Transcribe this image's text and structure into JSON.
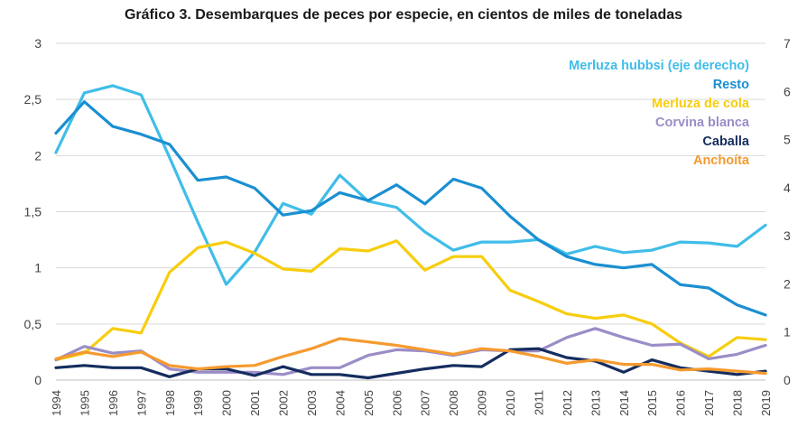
{
  "chart_data": {
    "type": "line",
    "title": "Gráfico 3. Desembarques de peces por especie, en cientos de miles de toneladas",
    "x": [
      "1994",
      "1995",
      "1996",
      "1997",
      "1998",
      "1999",
      "2000",
      "2001",
      "2002",
      "2003",
      "2004",
      "2005",
      "2006",
      "2007",
      "2008",
      "2009",
      "2010",
      "2011",
      "2012",
      "2013",
      "2014",
      "2015",
      "2016",
      "2017",
      "2018",
      "2019"
    ],
    "ylim_left": [
      0,
      3
    ],
    "yticks_left": [
      "0",
      "0,5",
      "1",
      "1,5",
      "2",
      "2,5",
      "3"
    ],
    "ylim_right": [
      0,
      7
    ],
    "yticks_right": [
      "0",
      "1",
      "2",
      "3",
      "4",
      "5",
      "6",
      "7"
    ],
    "grid": true,
    "legend_position": "top-right",
    "series": [
      {
        "name": "Merluza hubbsi (eje derecho)",
        "axis": "right",
        "color": "#40bde8",
        "values": [
          4.73,
          5.97,
          6.12,
          5.93,
          4.63,
          3.28,
          1.99,
          2.66,
          3.67,
          3.45,
          4.26,
          3.72,
          3.59,
          3.08,
          2.7,
          2.87,
          2.87,
          2.92,
          2.62,
          2.78,
          2.65,
          2.7,
          2.87,
          2.85,
          2.78,
          3.22
        ]
      },
      {
        "name": "Resto",
        "axis": "left",
        "color": "#1a8fd1",
        "values": [
          2.2,
          2.48,
          2.26,
          2.19,
          2.1,
          1.78,
          1.81,
          1.71,
          1.47,
          1.51,
          1.67,
          1.6,
          1.74,
          1.57,
          1.79,
          1.71,
          1.46,
          1.25,
          1.1,
          1.03,
          1.0,
          1.03,
          0.85,
          0.82,
          0.67,
          0.58
        ]
      },
      {
        "name": "Merluza de cola",
        "axis": "left",
        "color": "#f7cd0d",
        "values": [
          0.18,
          0.24,
          0.46,
          0.42,
          0.96,
          1.18,
          1.23,
          1.13,
          0.99,
          0.97,
          1.17,
          1.15,
          1.24,
          0.98,
          1.1,
          1.1,
          0.8,
          0.7,
          0.59,
          0.55,
          0.58,
          0.5,
          0.33,
          0.21,
          0.38,
          0.36
        ]
      },
      {
        "name": "Corvina blanca",
        "axis": "left",
        "color": "#9b8dc7",
        "values": [
          0.18,
          0.3,
          0.24,
          0.26,
          0.1,
          0.07,
          0.07,
          0.07,
          0.05,
          0.11,
          0.11,
          0.22,
          0.27,
          0.26,
          0.22,
          0.27,
          0.26,
          0.26,
          0.38,
          0.46,
          0.38,
          0.31,
          0.32,
          0.19,
          0.23,
          0.31
        ]
      },
      {
        "name": "Caballa",
        "axis": "left",
        "color": "#152d5e",
        "values": [
          0.11,
          0.13,
          0.11,
          0.11,
          0.03,
          0.1,
          0.1,
          0.04,
          0.12,
          0.05,
          0.05,
          0.02,
          0.06,
          0.1,
          0.13,
          0.12,
          0.27,
          0.28,
          0.2,
          0.17,
          0.07,
          0.18,
          0.11,
          0.08,
          0.05,
          0.08
        ]
      },
      {
        "name": "Anchoíta",
        "axis": "left",
        "color": "#f59a2f",
        "values": [
          0.19,
          0.25,
          0.21,
          0.25,
          0.13,
          0.1,
          0.12,
          0.13,
          0.21,
          0.28,
          0.37,
          0.34,
          0.31,
          0.27,
          0.23,
          0.28,
          0.26,
          0.21,
          0.15,
          0.18,
          0.14,
          0.14,
          0.09,
          0.1,
          0.08,
          0.06
        ]
      }
    ]
  }
}
